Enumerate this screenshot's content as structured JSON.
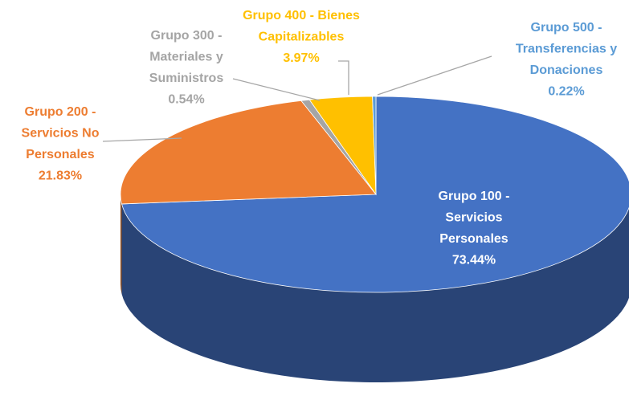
{
  "chart_data": {
    "type": "pie3d",
    "categories": [
      "Grupo 100 -\nServicios\nPersonales",
      "Grupo 200 -\nServicios No\nPersonales",
      "Grupo 300 -\nMateriales y\nSuministros",
      "Grupo 400 - Bienes\nCapitalizables",
      "Grupo 500 -\nTransferencias y\nDonaciones"
    ],
    "values": [
      73.44,
      21.83,
      0.54,
      3.97,
      0.22
    ],
    "value_labels": [
      "73.44%",
      "21.83%",
      "0.54%",
      "3.97%",
      "0.22%"
    ],
    "colors": [
      "#4472c4",
      "#ed7d31",
      "#a5a5a5",
      "#ffc000",
      "#5b9bd5"
    ],
    "label_colors": [
      "#ffffff",
      "#ed7d31",
      "#a5a5a5",
      "#ffc000",
      "#5b9bd5"
    ]
  }
}
